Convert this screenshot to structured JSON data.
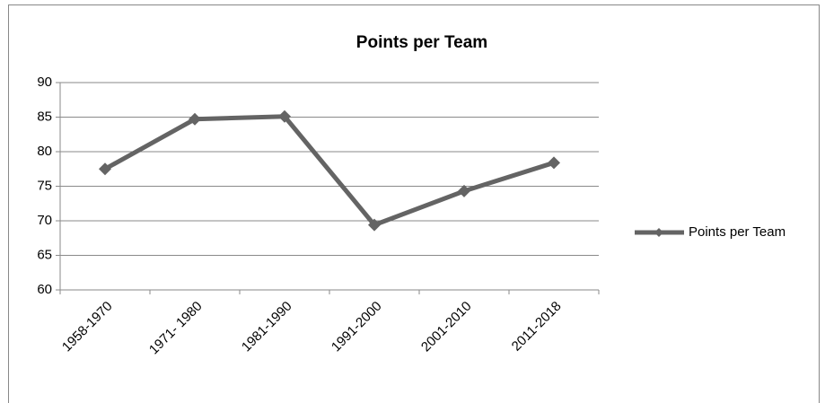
{
  "chart_data": {
    "type": "line",
    "title": "Points per Team",
    "categories": [
      "1958-1970",
      "1971- 1980",
      "1981-1990",
      "1991-2000",
      "2001-2010",
      "2011-2018"
    ],
    "series": [
      {
        "name": "Points per Team",
        "color": "#646464",
        "values": [
          77.5,
          84.7,
          85.1,
          69.4,
          74.3,
          78.4
        ]
      }
    ],
    "ylim": [
      60,
      90
    ],
    "yticks": [
      60,
      65,
      70,
      75,
      80,
      85,
      90
    ],
    "grid": true,
    "legend": "right"
  }
}
